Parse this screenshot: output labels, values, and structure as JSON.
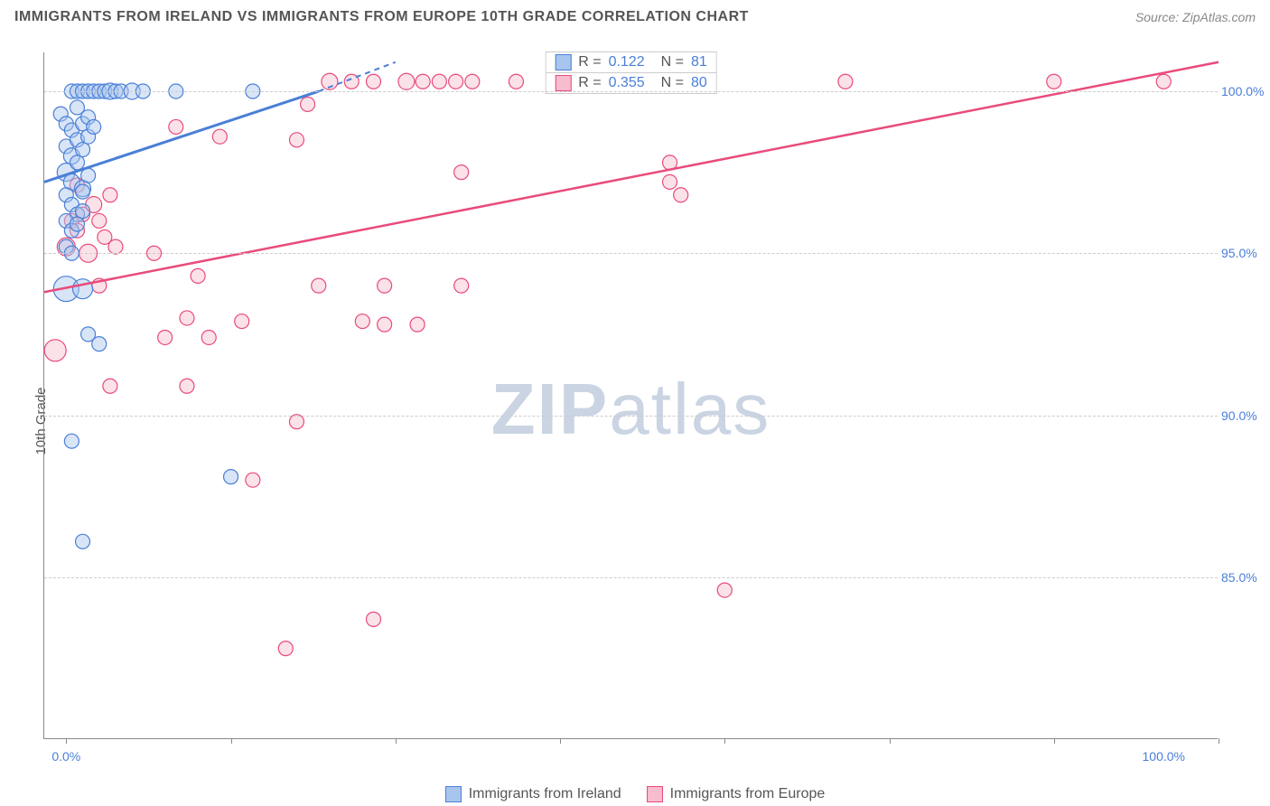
{
  "header": {
    "title": "IMMIGRANTS FROM IRELAND VS IMMIGRANTS FROM EUROPE 10TH GRADE CORRELATION CHART",
    "source": "Source: ZipAtlas.com"
  },
  "axes": {
    "y_label": "10th Grade",
    "y_ticks": [
      85.0,
      90.0,
      95.0,
      100.0
    ],
    "y_tick_labels": [
      "85.0%",
      "90.0%",
      "95.0%",
      "100.0%"
    ],
    "y_min": 80.0,
    "y_max": 101.2,
    "x_ticks": [
      0.0,
      100.0
    ],
    "x_tick_labels": [
      "0.0%",
      "100.0%"
    ],
    "x_minor_ticks": [
      0,
      15,
      30,
      45,
      60,
      75,
      90,
      105
    ],
    "x_min": -2,
    "x_max": 105
  },
  "colors": {
    "blue_stroke": "#4a7fd8",
    "blue_fill": "#a8c5ed",
    "pink_stroke": "#e94b7b",
    "pink_fill": "#f7bccd",
    "grid": "#cccccc",
    "axis": "#888888",
    "text": "#555555",
    "tick_text": "#4a7fd8",
    "bg": "#ffffff"
  },
  "watermark": {
    "part1": "ZIP",
    "part2": "atlas"
  },
  "stats": [
    {
      "color_key": "blue",
      "r_label": "R =",
      "r": "0.122",
      "n_label": "N =",
      "n": "81"
    },
    {
      "color_key": "pink",
      "r_label": "R =",
      "r": "0.355",
      "n_label": "N =",
      "n": "80"
    }
  ],
  "legend": [
    {
      "color_key": "blue",
      "label": "Immigrants from Ireland"
    },
    {
      "color_key": "pink",
      "label": "Immigrants from Europe"
    }
  ],
  "series": {
    "ireland": {
      "trend": {
        "x1": -2,
        "y1": 97.2,
        "x2": 23,
        "y2": 100.0,
        "x2_dash": 30,
        "y2_dash": 100.9
      },
      "points": [
        {
          "x": 0,
          "y": 93.9,
          "r": 14
        },
        {
          "x": 0.5,
          "y": 100,
          "r": 8
        },
        {
          "x": 1,
          "y": 100,
          "r": 8
        },
        {
          "x": 1.5,
          "y": 100,
          "r": 8
        },
        {
          "x": 2,
          "y": 100,
          "r": 8
        },
        {
          "x": 2.5,
          "y": 100,
          "r": 8
        },
        {
          "x": 3,
          "y": 100,
          "r": 8
        },
        {
          "x": 3.5,
          "y": 100,
          "r": 8
        },
        {
          "x": 4,
          "y": 100,
          "r": 9
        },
        {
          "x": 4.5,
          "y": 100,
          "r": 8
        },
        {
          "x": 5,
          "y": 100,
          "r": 8
        },
        {
          "x": 6,
          "y": 100,
          "r": 9
        },
        {
          "x": 7,
          "y": 100,
          "r": 8
        },
        {
          "x": 10,
          "y": 100,
          "r": 8
        },
        {
          "x": 17,
          "y": 100,
          "r": 8
        },
        {
          "x": -0.5,
          "y": 99.3,
          "r": 8
        },
        {
          "x": 0,
          "y": 99.0,
          "r": 8
        },
        {
          "x": 0.5,
          "y": 98.8,
          "r": 8
        },
        {
          "x": 1,
          "y": 99.5,
          "r": 8
        },
        {
          "x": 1.5,
          "y": 99.0,
          "r": 8
        },
        {
          "x": 2,
          "y": 99.2,
          "r": 8
        },
        {
          "x": 0,
          "y": 98.3,
          "r": 8
        },
        {
          "x": 0.5,
          "y": 98.0,
          "r": 9
        },
        {
          "x": 1,
          "y": 98.5,
          "r": 8
        },
        {
          "x": 1.5,
          "y": 98.2,
          "r": 8
        },
        {
          "x": 2,
          "y": 98.6,
          "r": 8
        },
        {
          "x": 2.5,
          "y": 98.9,
          "r": 8
        },
        {
          "x": 0,
          "y": 97.5,
          "r": 10
        },
        {
          "x": 0.5,
          "y": 97.2,
          "r": 9
        },
        {
          "x": 1,
          "y": 97.8,
          "r": 8
        },
        {
          "x": 1.5,
          "y": 97.0,
          "r": 9
        },
        {
          "x": 2,
          "y": 97.4,
          "r": 8
        },
        {
          "x": 0,
          "y": 96.8,
          "r": 8
        },
        {
          "x": 0.5,
          "y": 96.5,
          "r": 8
        },
        {
          "x": 1,
          "y": 96.2,
          "r": 8
        },
        {
          "x": 1.5,
          "y": 96.9,
          "r": 8
        },
        {
          "x": 0,
          "y": 96.0,
          "r": 8
        },
        {
          "x": 0.5,
          "y": 95.7,
          "r": 8
        },
        {
          "x": 1,
          "y": 95.9,
          "r": 8
        },
        {
          "x": 1.5,
          "y": 96.3,
          "r": 8
        },
        {
          "x": 0,
          "y": 95.2,
          "r": 8
        },
        {
          "x": 0.5,
          "y": 95.0,
          "r": 8
        },
        {
          "x": 1.5,
          "y": 93.9,
          "r": 11
        },
        {
          "x": 3,
          "y": 92.2,
          "r": 8
        },
        {
          "x": 2,
          "y": 92.5,
          "r": 8
        },
        {
          "x": 0.5,
          "y": 89.2,
          "r": 8
        },
        {
          "x": 1.5,
          "y": 86.1,
          "r": 8
        },
        {
          "x": 15,
          "y": 88.1,
          "r": 8
        }
      ]
    },
    "europe": {
      "trend": {
        "x1": -2,
        "y1": 93.8,
        "x2": 105,
        "y2": 100.9
      },
      "points": [
        {
          "x": 24,
          "y": 100.3,
          "r": 9
        },
        {
          "x": 26,
          "y": 100.3,
          "r": 8
        },
        {
          "x": 28,
          "y": 100.3,
          "r": 8
        },
        {
          "x": 31,
          "y": 100.3,
          "r": 9
        },
        {
          "x": 32.5,
          "y": 100.3,
          "r": 8
        },
        {
          "x": 34,
          "y": 100.3,
          "r": 8
        },
        {
          "x": 35.5,
          "y": 100.3,
          "r": 8
        },
        {
          "x": 37,
          "y": 100.3,
          "r": 8
        },
        {
          "x": 41,
          "y": 100.3,
          "r": 8
        },
        {
          "x": 71,
          "y": 100.3,
          "r": 8
        },
        {
          "x": 90,
          "y": 100.3,
          "r": 8
        },
        {
          "x": 100,
          "y": 100.3,
          "r": 8
        },
        {
          "x": 10,
          "y": 98.9,
          "r": 8
        },
        {
          "x": 14,
          "y": 98.6,
          "r": 8
        },
        {
          "x": 21,
          "y": 98.5,
          "r": 8
        },
        {
          "x": 22,
          "y": 99.6,
          "r": 8
        },
        {
          "x": 36,
          "y": 97.5,
          "r": 8
        },
        {
          "x": 55,
          "y": 97.2,
          "r": 8
        },
        {
          "x": 55,
          "y": 97.8,
          "r": 8
        },
        {
          "x": 56,
          "y": 96.8,
          "r": 8
        },
        {
          "x": 0,
          "y": 95.2,
          "r": 10
        },
        {
          "x": 0.5,
          "y": 96.0,
          "r": 8
        },
        {
          "x": 1,
          "y": 95.7,
          "r": 8
        },
        {
          "x": 1.5,
          "y": 96.2,
          "r": 8
        },
        {
          "x": 2,
          "y": 95.0,
          "r": 10
        },
        {
          "x": 2.5,
          "y": 96.5,
          "r": 9
        },
        {
          "x": 3,
          "y": 96.0,
          "r": 8
        },
        {
          "x": 3.5,
          "y": 95.5,
          "r": 8
        },
        {
          "x": 4,
          "y": 96.8,
          "r": 8
        },
        {
          "x": 1,
          "y": 97.1,
          "r": 8
        },
        {
          "x": 4.5,
          "y": 95.2,
          "r": 8
        },
        {
          "x": 8,
          "y": 95.0,
          "r": 8
        },
        {
          "x": 3,
          "y": 94.0,
          "r": 8
        },
        {
          "x": 12,
          "y": 94.3,
          "r": 8
        },
        {
          "x": 23,
          "y": 94.0,
          "r": 8
        },
        {
          "x": 29,
          "y": 94.0,
          "r": 8
        },
        {
          "x": 36,
          "y": 94.0,
          "r": 8
        },
        {
          "x": 11,
          "y": 93.0,
          "r": 8
        },
        {
          "x": 16,
          "y": 92.9,
          "r": 8
        },
        {
          "x": 27,
          "y": 92.9,
          "r": 8
        },
        {
          "x": 29,
          "y": 92.8,
          "r": 8
        },
        {
          "x": 32,
          "y": 92.8,
          "r": 8
        },
        {
          "x": -1,
          "y": 92.0,
          "r": 12
        },
        {
          "x": 9,
          "y": 92.4,
          "r": 8
        },
        {
          "x": 13,
          "y": 92.4,
          "r": 8
        },
        {
          "x": 4,
          "y": 90.9,
          "r": 8
        },
        {
          "x": 11,
          "y": 90.9,
          "r": 8
        },
        {
          "x": 21,
          "y": 89.8,
          "r": 8
        },
        {
          "x": 17,
          "y": 88.0,
          "r": 8
        },
        {
          "x": 28,
          "y": 83.7,
          "r": 8
        },
        {
          "x": 20,
          "y": 82.8,
          "r": 8
        },
        {
          "x": 60,
          "y": 84.6,
          "r": 8
        }
      ]
    }
  }
}
